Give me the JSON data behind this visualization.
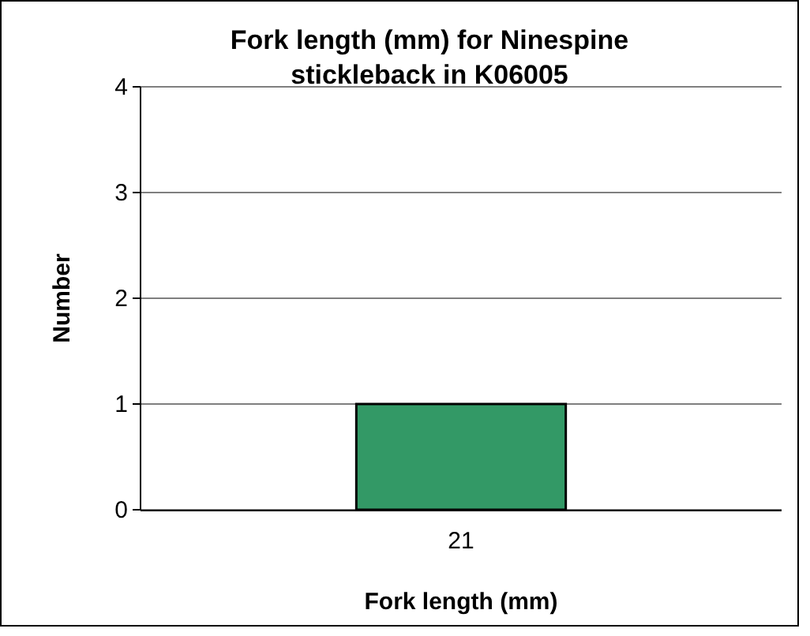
{
  "chart_data": {
    "type": "bar",
    "title": "Fork length (mm) for Ninespine stickleback in K06005",
    "xlabel": "Fork length (mm)",
    "ylabel": "Number",
    "categories": [
      "21"
    ],
    "values": [
      1
    ],
    "color": "#339966",
    "ylim": [
      0,
      4
    ],
    "yticks": [
      0,
      1,
      2,
      3,
      4
    ],
    "grid": "y"
  }
}
